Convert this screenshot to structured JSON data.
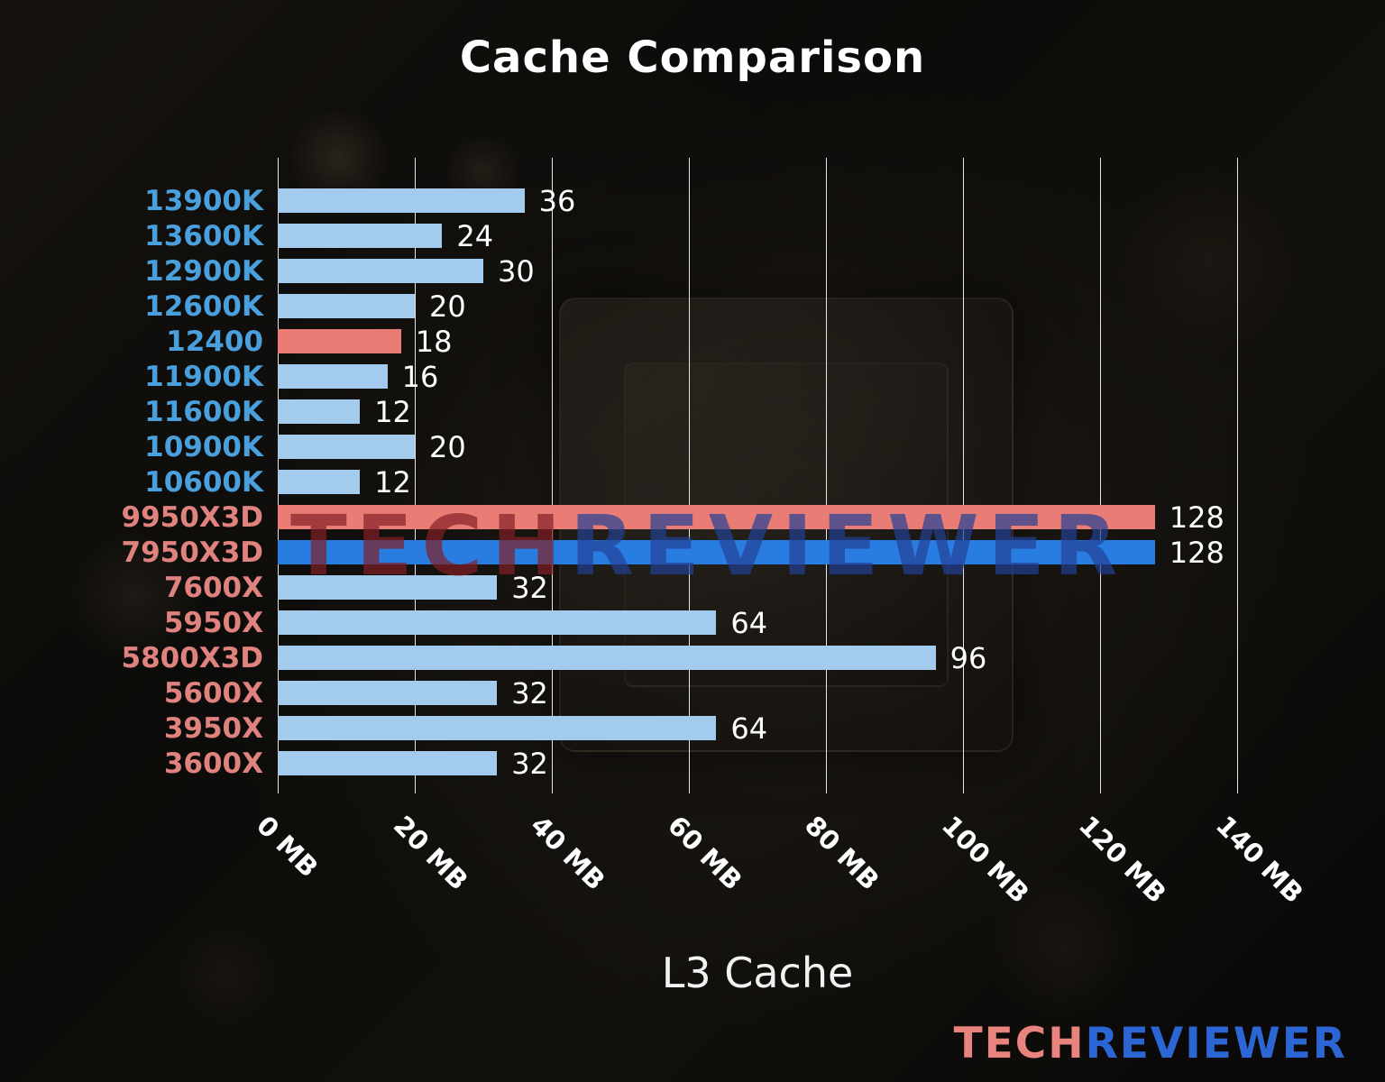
{
  "watermark": {
    "text_red": "TECH",
    "text_blue": "REVIEWER"
  },
  "logo": {
    "text_red": "TECH",
    "text_blue": "REVIEWER",
    "color_red": "#e8837d",
    "color_blue": "#2c66d4"
  },
  "chart_data": {
    "type": "bar",
    "orientation": "horizontal",
    "title": "Cache Comparison",
    "xlabel": "L3 Cache",
    "xlim": [
      0,
      140
    ],
    "x_ticks": [
      "0 MB",
      "20 MB",
      "40 MB",
      "60 MB",
      "80 MB",
      "100 MB",
      "120 MB",
      "140 MB"
    ],
    "grid": true,
    "colors": {
      "bar_default": "#a3cbee",
      "bar_red": "#e97d75",
      "bar_blue": "#2a7de0",
      "label_intel": "#4aa0dd",
      "label_amd": "#e0837f",
      "grid": "#e6e6e6",
      "value_text": "#ffffff",
      "tick_text": "#ffffff"
    },
    "bars": [
      {
        "label": "13900K",
        "value": 36,
        "brand": "intel",
        "color": "bar_default"
      },
      {
        "label": "13600K",
        "value": 24,
        "brand": "intel",
        "color": "bar_default"
      },
      {
        "label": "12900K",
        "value": 30,
        "brand": "intel",
        "color": "bar_default"
      },
      {
        "label": "12600K",
        "value": 20,
        "brand": "intel",
        "color": "bar_default"
      },
      {
        "label": "12400",
        "value": 18,
        "brand": "intel",
        "color": "bar_red"
      },
      {
        "label": "11900K",
        "value": 16,
        "brand": "intel",
        "color": "bar_default"
      },
      {
        "label": "11600K",
        "value": 12,
        "brand": "intel",
        "color": "bar_default"
      },
      {
        "label": "10900K",
        "value": 20,
        "brand": "intel",
        "color": "bar_default"
      },
      {
        "label": "10600K",
        "value": 12,
        "brand": "intel",
        "color": "bar_default"
      },
      {
        "label": "9950X3D",
        "value": 128,
        "brand": "amd",
        "color": "bar_red"
      },
      {
        "label": "7950X3D",
        "value": 128,
        "brand": "amd",
        "color": "bar_blue"
      },
      {
        "label": "7600X",
        "value": 32,
        "brand": "amd",
        "color": "bar_default"
      },
      {
        "label": "5950X",
        "value": 64,
        "brand": "amd",
        "color": "bar_default"
      },
      {
        "label": "5800X3D",
        "value": 96,
        "brand": "amd",
        "color": "bar_default"
      },
      {
        "label": "5600X",
        "value": 32,
        "brand": "amd",
        "color": "bar_default"
      },
      {
        "label": "3950X",
        "value": 64,
        "brand": "amd",
        "color": "bar_default"
      },
      {
        "label": "3600X",
        "value": 32,
        "brand": "amd",
        "color": "bar_default"
      }
    ]
  }
}
